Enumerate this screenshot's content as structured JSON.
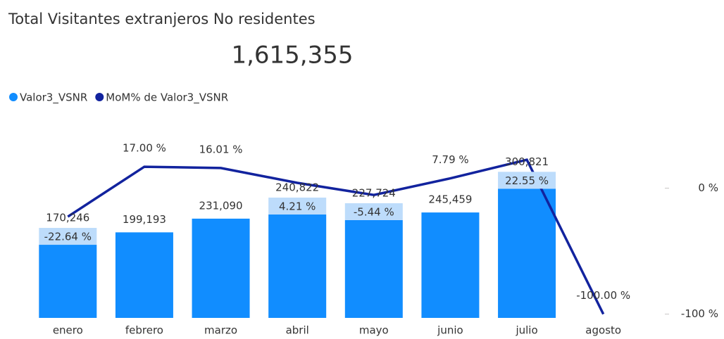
{
  "chart_data": {
    "type": "bar_line",
    "title": "Total Visitantes extranjeros No residentes",
    "total": "1,615,355",
    "categories": [
      "enero",
      "febrero",
      "marzo",
      "abril",
      "mayo",
      "junio",
      "julio",
      "agosto"
    ],
    "series": [
      {
        "name": "Valor3_VSNR",
        "color": "#118dff",
        "type": "bar",
        "values": [
          170246,
          199193,
          231090,
          240822,
          227724,
          245459,
          300821,
          null
        ],
        "value_labels": [
          "170,246",
          "199,193",
          "231,090",
          "240,822",
          "227,724",
          "245,459",
          "300,821",
          null
        ]
      },
      {
        "name": "MoM% de Valor3_VSNR",
        "color": "#12239e",
        "type": "line",
        "axis": "y2",
        "values": [
          -22.64,
          17.0,
          16.01,
          4.21,
          -5.44,
          7.79,
          22.55,
          -100.0
        ],
        "value_labels": [
          "-22.64 %",
          "17.00 %",
          "16.01 %",
          "4.21 %",
          "-5.44 %",
          "7.79 %",
          "22.55 %",
          "-100.00 %"
        ]
      }
    ],
    "ylim": [
      0,
      393000
    ],
    "y2lim": [
      -103,
      31
    ],
    "y2ticks": [
      {
        "value": 0,
        "label": "0 %"
      },
      {
        "value": -100,
        "label": "-100 %"
      }
    ]
  }
}
